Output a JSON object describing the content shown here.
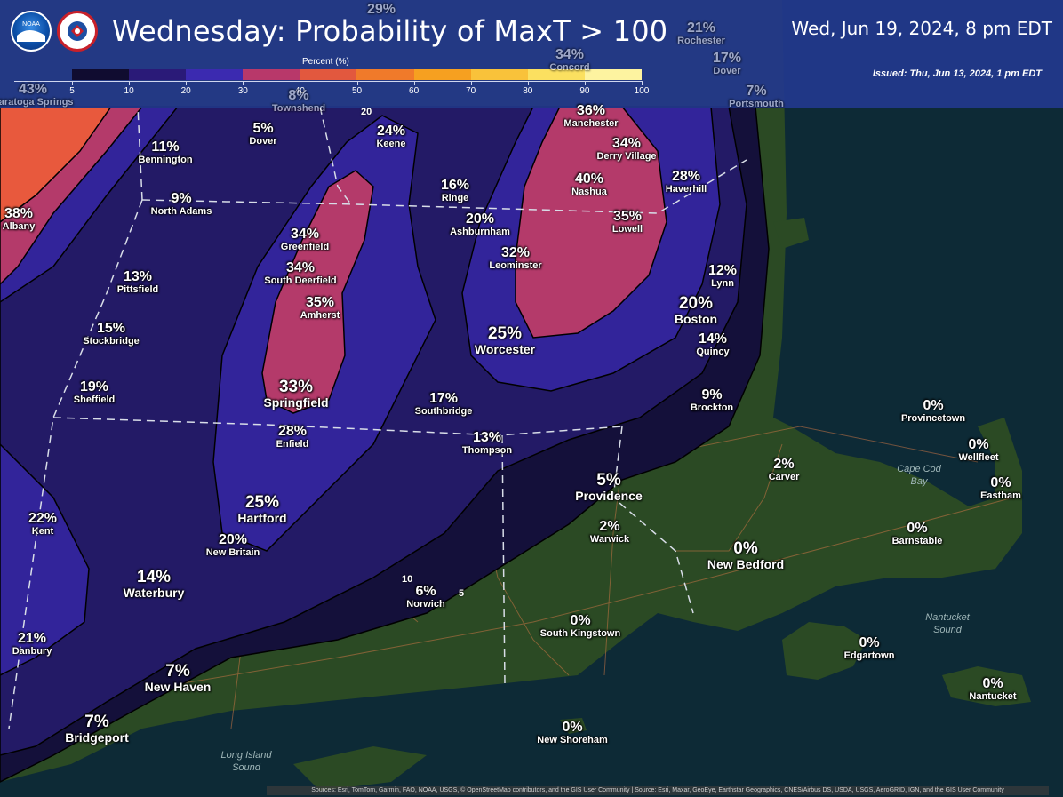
{
  "header": {
    "title": "Wednesday: Probability of MaxT > 100",
    "valid_time": "Wed, Jun 19, 2024, 8 pm EDT",
    "issued": "Issued: Thu, Jun 13, 2024, 1 pm EDT"
  },
  "legend": {
    "title": "Percent (%)",
    "ticks": [
      "5",
      "10",
      "20",
      "30",
      "40",
      "50",
      "60",
      "70",
      "80",
      "90",
      "100"
    ],
    "colors": [
      "#100c30",
      "#2a1a78",
      "#3b2ab0",
      "#b8386a",
      "#e2583e",
      "#f07a2a",
      "#f6a020",
      "#f9c23a",
      "#fbe060",
      "#fdf3a0"
    ]
  },
  "colors": {
    "header_bg": "#22388c",
    "ocean": "#0d2a36",
    "land": "#2b4a24",
    "band_5_10": "#14103a",
    "band_10_20": "#231a66",
    "band_20_30": "#32249a",
    "band_30_40": "#b43a6a",
    "band_40_50": "#e8593d"
  },
  "contour_labels": [
    "10",
    "5",
    "20"
  ],
  "places": [
    {
      "p": "11%",
      "n": "Bennington"
    },
    {
      "p": "9%",
      "n": "North Adams"
    },
    {
      "p": "5%",
      "n": "Dover"
    },
    {
      "p": "24%",
      "n": "Keene"
    },
    {
      "p": "16%",
      "n": "Ringe"
    },
    {
      "p": "20%",
      "n": "Ashburnham"
    },
    {
      "p": "36%",
      "n": "Manchester"
    },
    {
      "p": "34%",
      "n": "Derry Village"
    },
    {
      "p": "40%",
      "n": "Nashua"
    },
    {
      "p": "28%",
      "n": "Haverhill"
    },
    {
      "p": "35%",
      "n": "Lowell"
    },
    {
      "p": "32%",
      "n": "Leominster"
    },
    {
      "p": "34%",
      "n": "Greenfield"
    },
    {
      "p": "34%",
      "n": "South Deerfield"
    },
    {
      "p": "35%",
      "n": "Amherst"
    },
    {
      "p": "38%",
      "n": "Albany"
    },
    {
      "p": "13%",
      "n": "Pittsfield"
    },
    {
      "p": "15%",
      "n": "Stockbridge"
    },
    {
      "p": "19%",
      "n": "Sheffield"
    },
    {
      "p": "33%",
      "n": "Springfield"
    },
    {
      "p": "28%",
      "n": "Enfield"
    },
    {
      "p": "17%",
      "n": "Southbridge"
    },
    {
      "p": "13%",
      "n": "Thompson"
    },
    {
      "p": "25%",
      "n": "Worcester"
    },
    {
      "p": "12%",
      "n": "Lynn"
    },
    {
      "p": "20%",
      "n": "Boston"
    },
    {
      "p": "14%",
      "n": "Quincy"
    },
    {
      "p": "9%",
      "n": "Brockton"
    },
    {
      "p": "0%",
      "n": "Provincetown"
    },
    {
      "p": "0%",
      "n": "Wellfleet"
    },
    {
      "p": "0%",
      "n": "Eastham"
    },
    {
      "p": "2%",
      "n": "Carver"
    },
    {
      "p": "0%",
      "n": "Barnstable"
    },
    {
      "p": "5%",
      "n": "Providence"
    },
    {
      "p": "2%",
      "n": "Warwick"
    },
    {
      "p": "0%",
      "n": "New Bedford"
    },
    {
      "p": "22%",
      "n": "Kent"
    },
    {
      "p": "25%",
      "n": "Hartford"
    },
    {
      "p": "20%",
      "n": "New Britain"
    },
    {
      "p": "14%",
      "n": "Waterbury"
    },
    {
      "p": "6%",
      "n": "Norwich"
    },
    {
      "p": "0%",
      "n": "South Kingstown"
    },
    {
      "p": "21%",
      "n": "Danbury"
    },
    {
      "p": "7%",
      "n": "New Haven"
    },
    {
      "p": "0%",
      "n": "Edgartown"
    },
    {
      "p": "0%",
      "n": "Nantucket"
    },
    {
      "p": "7%",
      "n": "Bridgeport"
    },
    {
      "p": "0%",
      "n": "New Shoreham"
    }
  ],
  "header_places": [
    {
      "p": "29%",
      "n": ""
    },
    {
      "p": "21%",
      "n": "Rochester"
    },
    {
      "p": "34%",
      "n": "Concord"
    },
    {
      "p": "17%",
      "n": "Dover"
    },
    {
      "p": "7%",
      "n": "Portsmouth"
    },
    {
      "p": "43%",
      "n": "Saratoga Springs"
    },
    {
      "p": "8%",
      "n": "Townshend"
    }
  ],
  "water_labels": [
    "Cape Cod Bay",
    "Nantucket Sound",
    "Long Island Sound"
  ],
  "attribution": "Sources: Esri, TomTom, Garmin, FAO, NOAA, USGS, © OpenStreetMap contributors, and the GIS User Community | Source: Esri, Maxar, GeoEye, Earthstar Geographics, CNES/Airbus DS, USDA, USGS, AeroGRID, IGN, and the GIS User Community"
}
